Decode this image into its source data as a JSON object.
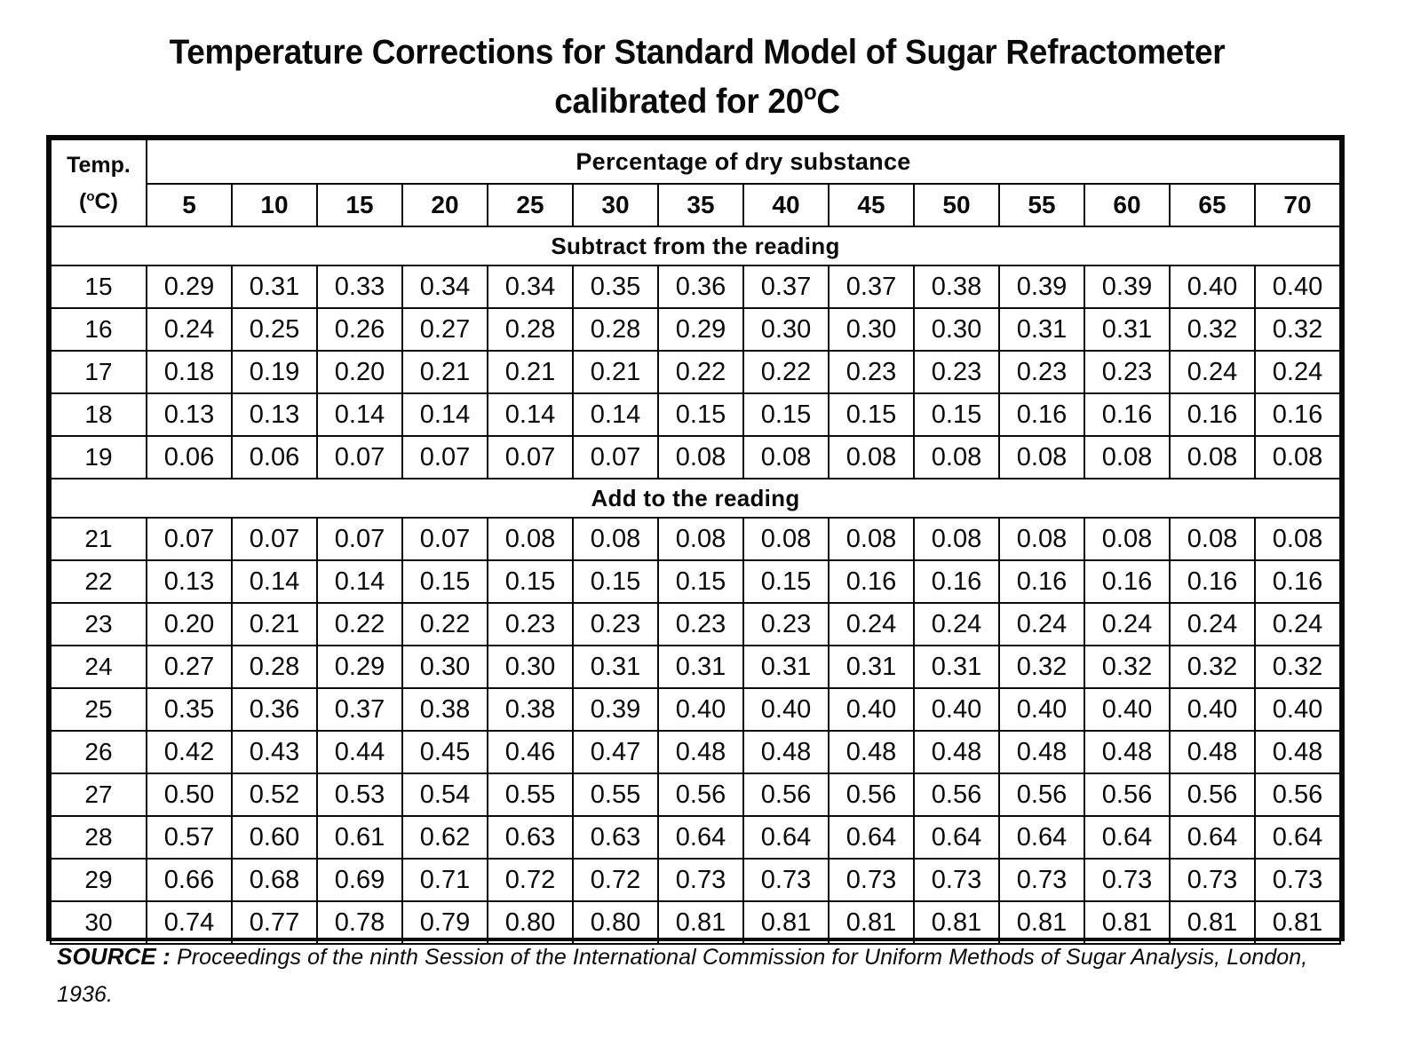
{
  "title": {
    "line1": "Temperature Corrections for Standard Model of Sugar Refractometer",
    "line2_prefix": "calibrated for 20",
    "line2_degree": "o",
    "line2_suffix": "C"
  },
  "table": {
    "temp_header_line1": "Temp.",
    "temp_header_open": "(",
    "temp_header_degree": "o",
    "temp_header_close": "C)",
    "group_header": "Percentage of dry substance",
    "columns": [
      "5",
      "10",
      "15",
      "20",
      "25",
      "30",
      "35",
      "40",
      "45",
      "50",
      "55",
      "60",
      "65",
      "70"
    ],
    "sections": [
      {
        "label": "Subtract from the reading",
        "rows": [
          {
            "temp": "15",
            "values": [
              "0.29",
              "0.31",
              "0.33",
              "0.34",
              "0.34",
              "0.35",
              "0.36",
              "0.37",
              "0.37",
              "0.38",
              "0.39",
              "0.39",
              "0.40",
              "0.40"
            ]
          },
          {
            "temp": "16",
            "values": [
              "0.24",
              "0.25",
              "0.26",
              "0.27",
              "0.28",
              "0.28",
              "0.29",
              "0.30",
              "0.30",
              "0.30",
              "0.31",
              "0.31",
              "0.32",
              "0.32"
            ]
          },
          {
            "temp": "17",
            "values": [
              "0.18",
              "0.19",
              "0.20",
              "0.21",
              "0.21",
              "0.21",
              "0.22",
              "0.22",
              "0.23",
              "0.23",
              "0.23",
              "0.23",
              "0.24",
              "0.24"
            ]
          },
          {
            "temp": "18",
            "values": [
              "0.13",
              "0.13",
              "0.14",
              "0.14",
              "0.14",
              "0.14",
              "0.15",
              "0.15",
              "0.15",
              "0.15",
              "0.16",
              "0.16",
              "0.16",
              "0.16"
            ]
          },
          {
            "temp": "19",
            "values": [
              "0.06",
              "0.06",
              "0.07",
              "0.07",
              "0.07",
              "0.07",
              "0.08",
              "0.08",
              "0.08",
              "0.08",
              "0.08",
              "0.08",
              "0.08",
              "0.08"
            ]
          }
        ]
      },
      {
        "label": "Add to the reading",
        "rows": [
          {
            "temp": "21",
            "values": [
              "0.07",
              "0.07",
              "0.07",
              "0.07",
              "0.08",
              "0.08",
              "0.08",
              "0.08",
              "0.08",
              "0.08",
              "0.08",
              "0.08",
              "0.08",
              "0.08"
            ]
          },
          {
            "temp": "22",
            "values": [
              "0.13",
              "0.14",
              "0.14",
              "0.15",
              "0.15",
              "0.15",
              "0.15",
              "0.15",
              "0.16",
              "0.16",
              "0.16",
              "0.16",
              "0.16",
              "0.16"
            ]
          },
          {
            "temp": "23",
            "values": [
              "0.20",
              "0.21",
              "0.22",
              "0.22",
              "0.23",
              "0.23",
              "0.23",
              "0.23",
              "0.24",
              "0.24",
              "0.24",
              "0.24",
              "0.24",
              "0.24"
            ]
          },
          {
            "temp": "24",
            "values": [
              "0.27",
              "0.28",
              "0.29",
              "0.30",
              "0.30",
              "0.31",
              "0.31",
              "0.31",
              "0.31",
              "0.31",
              "0.32",
              "0.32",
              "0.32",
              "0.32"
            ]
          },
          {
            "temp": "25",
            "values": [
              "0.35",
              "0.36",
              "0.37",
              "0.38",
              "0.38",
              "0.39",
              "0.40",
              "0.40",
              "0.40",
              "0.40",
              "0.40",
              "0.40",
              "0.40",
              "0.40"
            ]
          },
          {
            "temp": "26",
            "values": [
              "0.42",
              "0.43",
              "0.44",
              "0.45",
              "0.46",
              "0.47",
              "0.48",
              "0.48",
              "0.48",
              "0.48",
              "0.48",
              "0.48",
              "0.48",
              "0.48"
            ]
          },
          {
            "temp": "27",
            "values": [
              "0.50",
              "0.52",
              "0.53",
              "0.54",
              "0.55",
              "0.55",
              "0.56",
              "0.56",
              "0.56",
              "0.56",
              "0.56",
              "0.56",
              "0.56",
              "0.56"
            ]
          },
          {
            "temp": "28",
            "values": [
              "0.57",
              "0.60",
              "0.61",
              "0.62",
              "0.63",
              "0.63",
              "0.64",
              "0.64",
              "0.64",
              "0.64",
              "0.64",
              "0.64",
              "0.64",
              "0.64"
            ]
          },
          {
            "temp": "29",
            "values": [
              "0.66",
              "0.68",
              "0.69",
              "0.71",
              "0.72",
              "0.72",
              "0.73",
              "0.73",
              "0.73",
              "0.73",
              "0.73",
              "0.73",
              "0.73",
              "0.73"
            ]
          },
          {
            "temp": "30",
            "values": [
              "0.74",
              "0.77",
              "0.78",
              "0.79",
              "0.80",
              "0.80",
              "0.81",
              "0.81",
              "0.81",
              "0.81",
              "0.81",
              "0.81",
              "0.81",
              "0.81"
            ]
          }
        ]
      }
    ]
  },
  "source": {
    "label": "SOURCE :",
    "text": "Proceedings of the ninth Session of the International Commission for Uniform Methods of Sugar Analysis, London, 1936."
  }
}
